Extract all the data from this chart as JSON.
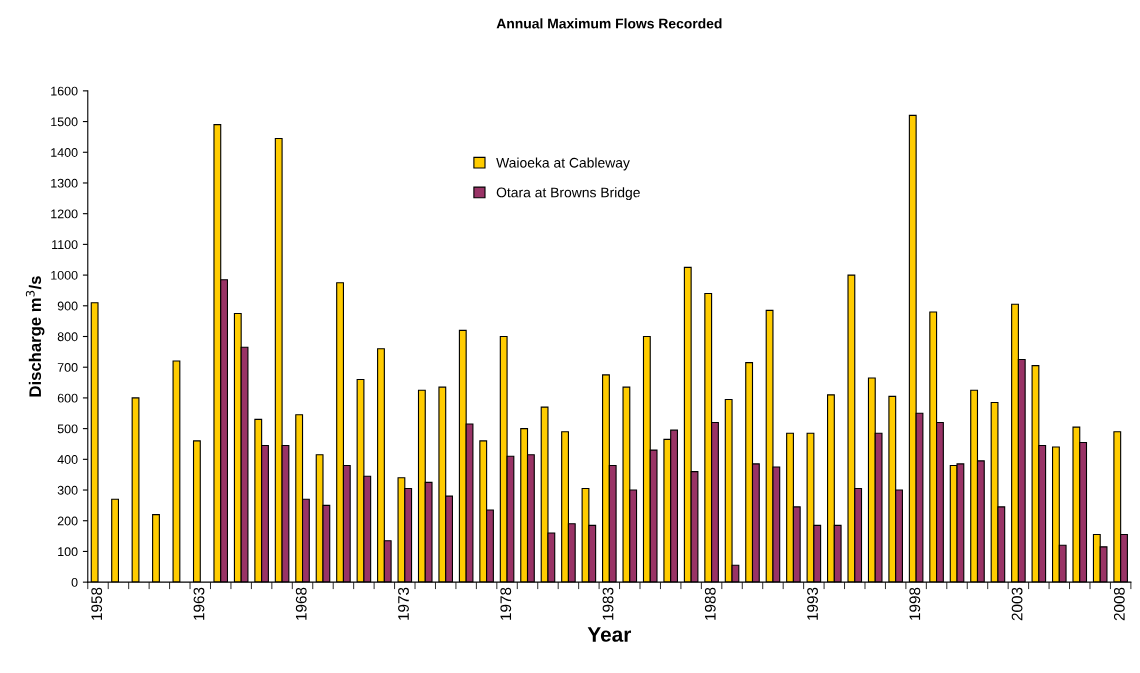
{
  "chart_data": {
    "type": "bar",
    "title": "Annual Maximum Flows Recorded",
    "xlabel": "Year",
    "ylabel": "Discharge m$^{3}$/s",
    "categories": [
      "1958",
      null,
      null,
      null,
      null,
      "1963",
      null,
      null,
      null,
      null,
      "1968",
      null,
      null,
      null,
      null,
      "1973",
      null,
      null,
      null,
      null,
      "1978",
      null,
      null,
      null,
      null,
      "1983",
      null,
      null,
      null,
      null,
      "1988",
      null,
      null,
      null,
      null,
      "1993",
      null,
      null,
      null,
      null,
      "1998",
      null,
      null,
      null,
      null,
      "2003",
      null,
      null,
      null,
      null,
      "2008"
    ],
    "series": [
      {
        "name": "Waioeka at Cableway",
        "color": "#ffcc00",
        "values": [
          910,
          270,
          600,
          220,
          720,
          460,
          1490,
          875,
          530,
          1445,
          545,
          415,
          975,
          660,
          760,
          340,
          625,
          635,
          820,
          460,
          800,
          500,
          570,
          490,
          305,
          675,
          635,
          800,
          465,
          1025,
          940,
          595,
          715,
          885,
          485,
          485,
          610,
          1000,
          665,
          605,
          1520,
          880,
          380,
          625,
          585,
          905,
          705,
          440,
          505,
          155,
          490
        ]
      },
      {
        "name": "Otara at Browns Bridge",
        "color": "#993366",
        "values": [
          null,
          null,
          null,
          null,
          null,
          null,
          985,
          765,
          445,
          445,
          270,
          250,
          380,
          345,
          135,
          305,
          325,
          280,
          515,
          235,
          410,
          415,
          160,
          190,
          185,
          380,
          300,
          430,
          495,
          360,
          520,
          55,
          385,
          375,
          245,
          185,
          185,
          305,
          485,
          300,
          550,
          520,
          385,
          395,
          245,
          725,
          445,
          120,
          455,
          115,
          155
        ]
      }
    ],
    "ylim": [
      0,
      1600
    ],
    "yticks": [
      0,
      100,
      200,
      300,
      400,
      500,
      600,
      700,
      800,
      900,
      1000,
      1100,
      1200,
      1300,
      1400,
      1500,
      1600
    ],
    "grid": false,
    "legend": "top center"
  }
}
